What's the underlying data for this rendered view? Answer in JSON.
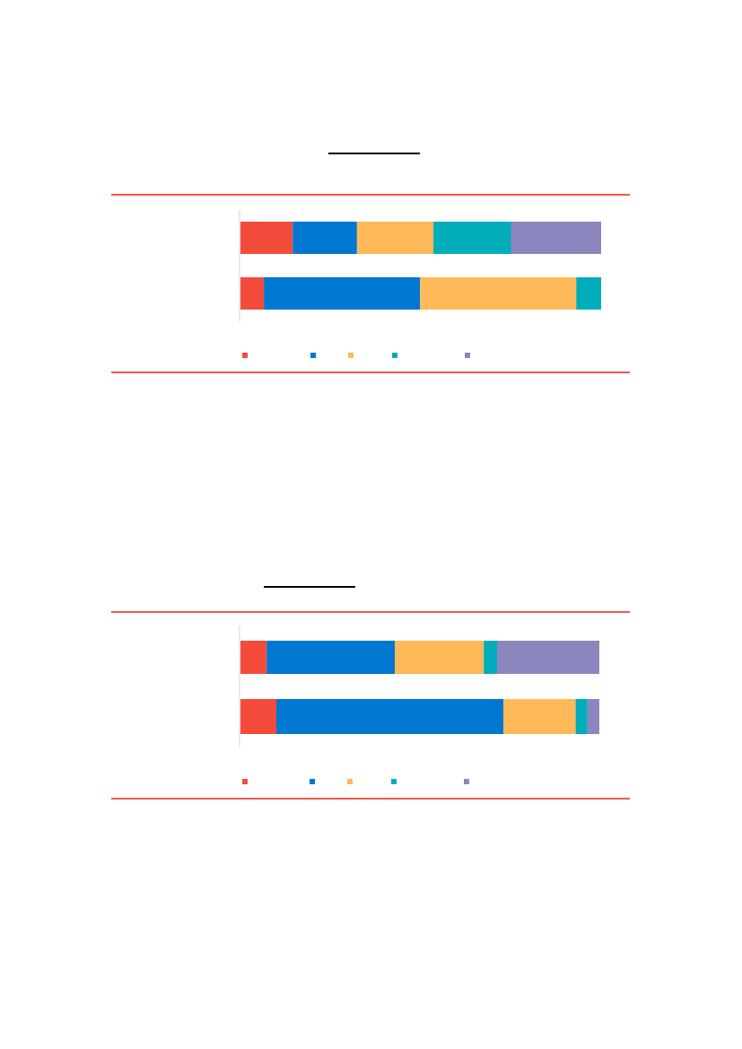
{
  "colors": {
    "frame": "#f0584a",
    "axis": "#d0d0d0",
    "series": [
      "#f44c3c",
      "#0077d0",
      "#ffb958",
      "#00adba",
      "#8b86be"
    ]
  },
  "chart_data": [
    {
      "type": "bar",
      "orientation": "horizontal",
      "stacked": "percent",
      "title": "",
      "xlabel": "",
      "ylabel": "",
      "xlim": [
        0,
        100
      ],
      "categories": [
        "",
        ""
      ],
      "series": [
        {
          "values": [
            14.5,
            6.5
          ]
        },
        {
          "values": [
            17.8,
            43.3
          ]
        },
        {
          "values": [
            21.2,
            43.3
          ]
        },
        {
          "values": [
            21.5,
            6.9
          ]
        },
        {
          "values": [
            25.0,
            0.0
          ]
        }
      ],
      "legend": {
        "position": "bottom",
        "labels": [
          "",
          "",
          "",
          "",
          ""
        ]
      }
    },
    {
      "type": "bar",
      "orientation": "horizontal",
      "stacked": "percent",
      "title": "",
      "xlabel": "",
      "ylabel": "",
      "xlim": [
        0,
        100
      ],
      "categories": [
        "",
        ""
      ],
      "series": [
        {
          "values": [
            7.3,
            10.0
          ]
        },
        {
          "values": [
            35.7,
            63.3
          ]
        },
        {
          "values": [
            24.8,
            20.1
          ]
        },
        {
          "values": [
            3.7,
            3.3
          ]
        },
        {
          "values": [
            28.5,
            3.3
          ]
        }
      ],
      "legend": {
        "position": "bottom",
        "labels": [
          "",
          "",
          "",
          "",
          ""
        ]
      }
    }
  ]
}
